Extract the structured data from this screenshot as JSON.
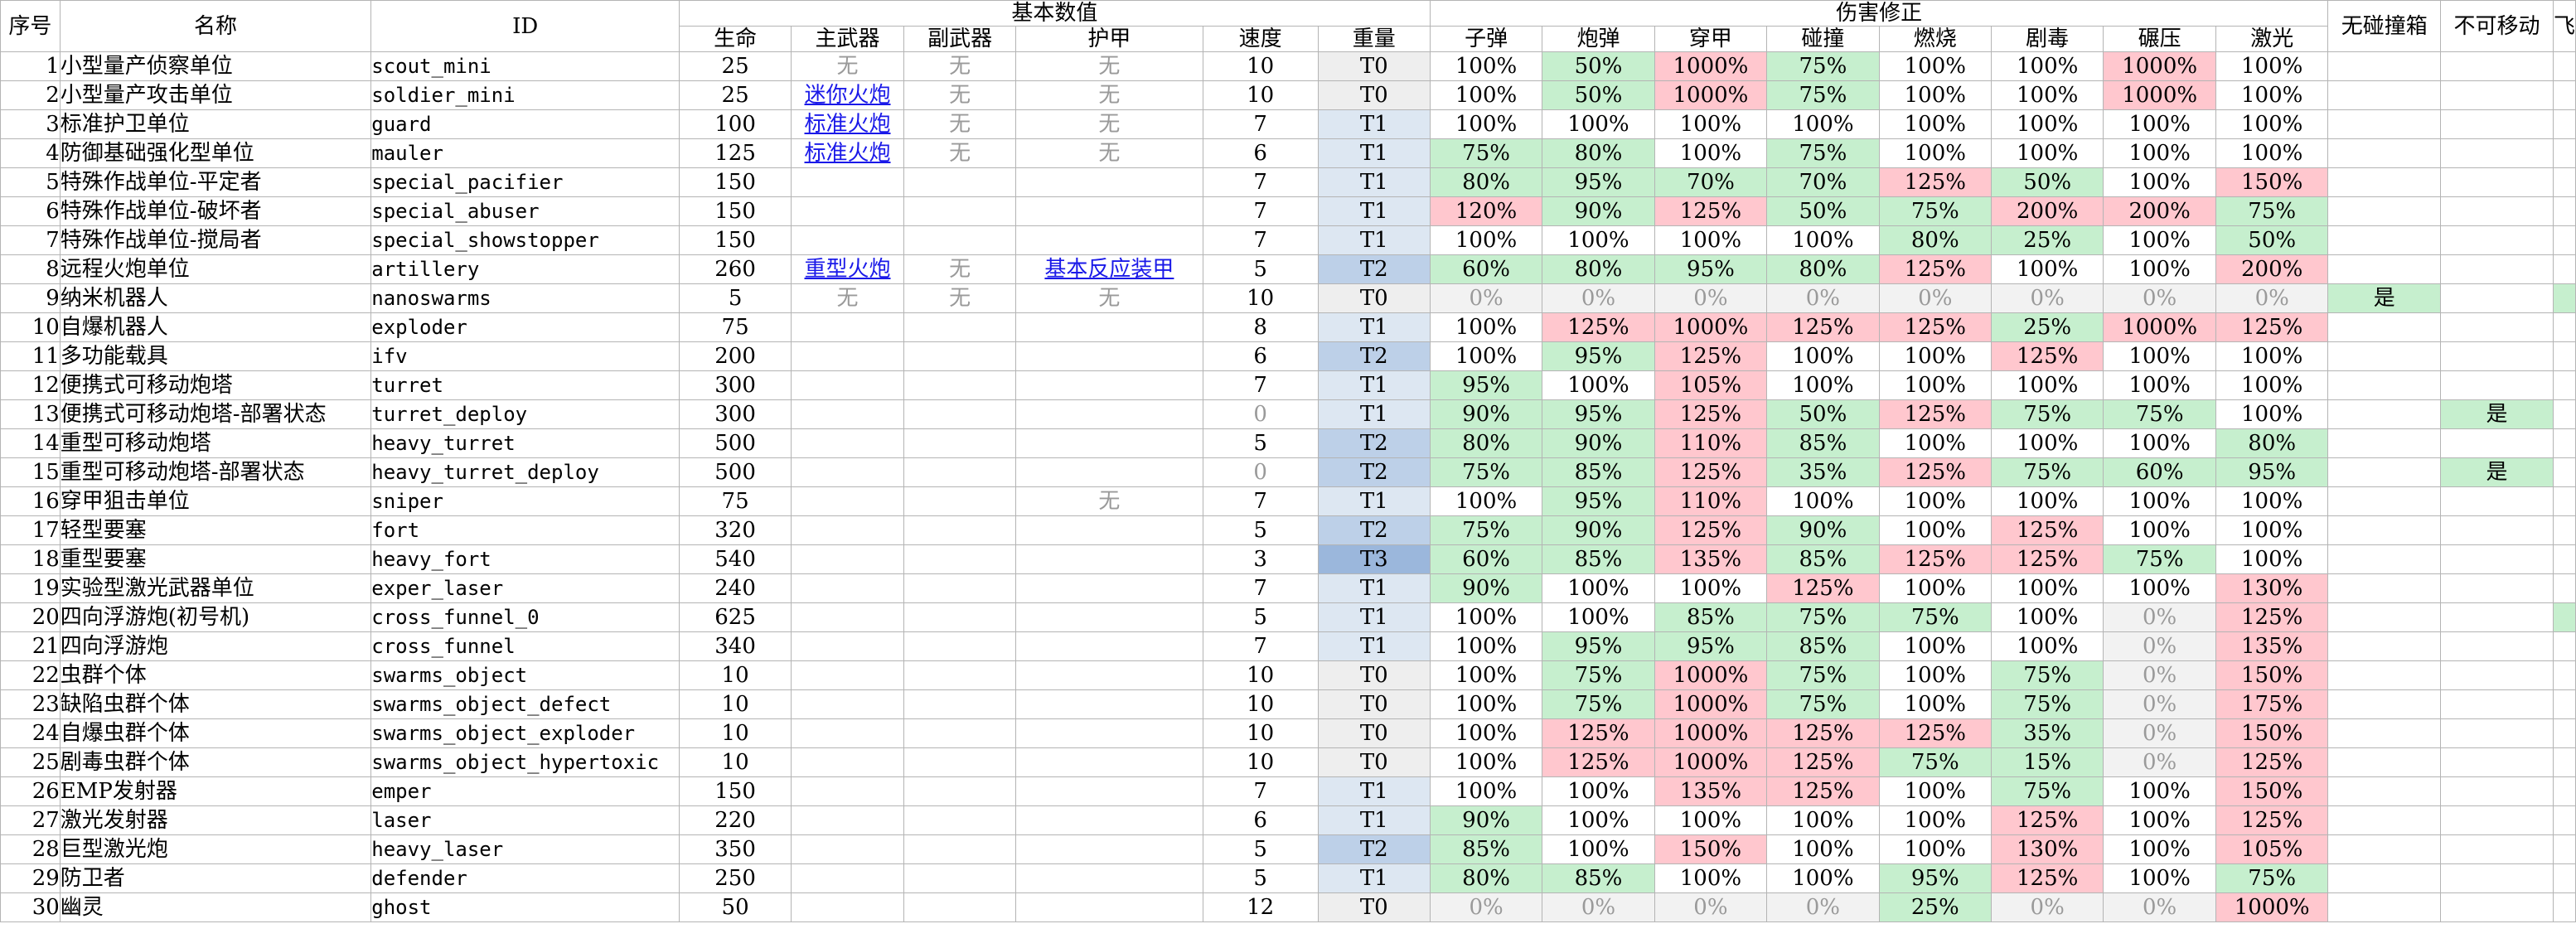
{
  "headers": {
    "top": {
      "no": "序号",
      "name": "名称",
      "id": "ID",
      "basic": "基本数值",
      "damage": "伤害修正",
      "no_collision": "无碰撞箱",
      "immobile": "不可移动",
      "extra": "飞"
    },
    "basic": [
      "生命",
      "主武器",
      "副武器",
      "护甲",
      "速度",
      "重量"
    ],
    "damage": [
      "子弹",
      "炮弹",
      "穿甲",
      "碰撞",
      "燃烧",
      "剧毒",
      "碾压",
      "激光"
    ]
  },
  "colors": {
    "grid": "#b4b4b4",
    "good": "#c6efce",
    "bad": "#ffc7ce",
    "zero": "#f2f2f2",
    "muted_text": "#9a9a9a",
    "link": "#1a19e8",
    "weight": {
      "T0": "#eeeeee",
      "T1": "#dde7f2",
      "T2": "#bdd0e8",
      "T3": "#9bb7dc"
    }
  },
  "rows": [
    {
      "no": "1",
      "name": "小型量产侦察单位",
      "id": "scout_mini",
      "hp": "25",
      "main": "无",
      "sub": "无",
      "armor": "无",
      "speed": "10",
      "weight": "T0",
      "mods": [
        "100%",
        "50%",
        "1000%",
        "75%",
        "100%",
        "100%",
        "1000%",
        "100%"
      ],
      "flags": [
        "",
        "",
        ""
      ]
    },
    {
      "no": "2",
      "name": "小型量产攻击单位",
      "id": "soldier_mini",
      "hp": "25",
      "main": "迷你火炮",
      "sub": "无",
      "armor": "无",
      "speed": "10",
      "weight": "T0",
      "mods": [
        "100%",
        "50%",
        "1000%",
        "75%",
        "100%",
        "100%",
        "1000%",
        "100%"
      ],
      "flags": [
        "",
        "",
        ""
      ]
    },
    {
      "no": "3",
      "name": "标准护卫单位",
      "id": "guard",
      "hp": "100",
      "main": "标准火炮",
      "sub": "无",
      "armor": "无",
      "speed": "7",
      "weight": "T1",
      "mods": [
        "100%",
        "100%",
        "100%",
        "100%",
        "100%",
        "100%",
        "100%",
        "100%"
      ],
      "flags": [
        "",
        "",
        ""
      ]
    },
    {
      "no": "4",
      "name": "防御基础强化型单位",
      "id": "mauler",
      "hp": "125",
      "main": "标准火炮",
      "sub": "无",
      "armor": "无",
      "speed": "6",
      "weight": "T1",
      "mods": [
        "75%",
        "80%",
        "100%",
        "75%",
        "100%",
        "100%",
        "100%",
        "100%"
      ],
      "flags": [
        "",
        "",
        ""
      ]
    },
    {
      "no": "5",
      "name": "特殊作战单位-平定者",
      "id": "special_pacifier",
      "hp": "150",
      "main": "",
      "sub": "",
      "armor": "",
      "speed": "7",
      "weight": "T1",
      "mods": [
        "80%",
        "95%",
        "70%",
        "70%",
        "125%",
        "50%",
        "100%",
        "150%"
      ],
      "flags": [
        "",
        "",
        ""
      ]
    },
    {
      "no": "6",
      "name": "特殊作战单位-破坏者",
      "id": "special_abuser",
      "hp": "150",
      "main": "",
      "sub": "",
      "armor": "",
      "speed": "7",
      "weight": "T1",
      "mods": [
        "120%",
        "90%",
        "125%",
        "50%",
        "75%",
        "200%",
        "200%",
        "75%"
      ],
      "flags": [
        "",
        "",
        ""
      ]
    },
    {
      "no": "7",
      "name": "特殊作战单位-搅局者",
      "id": "special_showstopper",
      "hp": "150",
      "main": "",
      "sub": "",
      "armor": "",
      "speed": "7",
      "weight": "T1",
      "mods": [
        "100%",
        "100%",
        "100%",
        "100%",
        "80%",
        "25%",
        "100%",
        "50%"
      ],
      "flags": [
        "",
        "",
        ""
      ]
    },
    {
      "no": "8",
      "name": "远程火炮单位",
      "id": "artillery",
      "hp": "260",
      "main": "重型火炮",
      "sub": "无",
      "armor": "基本反应装甲",
      "speed": "5",
      "weight": "T2",
      "mods": [
        "60%",
        "80%",
        "95%",
        "80%",
        "125%",
        "100%",
        "100%",
        "200%"
      ],
      "flags": [
        "",
        "",
        ""
      ]
    },
    {
      "no": "9",
      "name": "纳米机器人",
      "id": "nanoswarms",
      "hp": "5",
      "main": "无",
      "sub": "无",
      "armor": "无",
      "speed": "10",
      "weight": "T0",
      "mods": [
        "0%",
        "0%",
        "0%",
        "0%",
        "0%",
        "0%",
        "0%",
        "0%"
      ],
      "flags": [
        "是",
        "",
        ""
      ]
    },
    {
      "no": "10",
      "name": "自爆机器人",
      "id": "exploder",
      "hp": "75",
      "main": "",
      "sub": "",
      "armor": "",
      "speed": "8",
      "weight": "T1",
      "mods": [
        "100%",
        "125%",
        "1000%",
        "125%",
        "125%",
        "25%",
        "1000%",
        "125%"
      ],
      "flags": [
        "",
        "",
        ""
      ]
    },
    {
      "no": "11",
      "name": "多功能载具",
      "id": "ifv",
      "hp": "200",
      "main": "",
      "sub": "",
      "armor": "",
      "speed": "6",
      "weight": "T2",
      "mods": [
        "100%",
        "95%",
        "125%",
        "100%",
        "100%",
        "125%",
        "100%",
        "100%"
      ],
      "flags": [
        "",
        "",
        ""
      ]
    },
    {
      "no": "12",
      "name": "便携式可移动炮塔",
      "id": "turret",
      "hp": "300",
      "main": "",
      "sub": "",
      "armor": "",
      "speed": "7",
      "weight": "T1",
      "mods": [
        "95%",
        "100%",
        "105%",
        "100%",
        "100%",
        "100%",
        "100%",
        "100%"
      ],
      "flags": [
        "",
        "",
        ""
      ]
    },
    {
      "no": "13",
      "name": "便携式可移动炮塔-部署状态",
      "id": "turret_deploy",
      "hp": "300",
      "main": "",
      "sub": "",
      "armor": "",
      "speed": "0",
      "weight": "T1",
      "mods": [
        "90%",
        "95%",
        "125%",
        "50%",
        "125%",
        "75%",
        "75%",
        "100%"
      ],
      "flags": [
        "",
        "是",
        ""
      ]
    },
    {
      "no": "14",
      "name": "重型可移动炮塔",
      "id": "heavy_turret",
      "hp": "500",
      "main": "",
      "sub": "",
      "armor": "",
      "speed": "5",
      "weight": "T2",
      "mods": [
        "80%",
        "90%",
        "110%",
        "85%",
        "100%",
        "100%",
        "100%",
        "80%"
      ],
      "flags": [
        "",
        "",
        ""
      ]
    },
    {
      "no": "15",
      "name": "重型可移动炮塔-部署状态",
      "id": "heavy_turret_deploy",
      "hp": "500",
      "main": "",
      "sub": "",
      "armor": "",
      "speed": "0",
      "weight": "T2",
      "mods": [
        "75%",
        "85%",
        "125%",
        "35%",
        "125%",
        "75%",
        "60%",
        "95%"
      ],
      "flags": [
        "",
        "是",
        ""
      ]
    },
    {
      "no": "16",
      "name": "穿甲狙击单位",
      "id": "sniper",
      "hp": "75",
      "main": "",
      "sub": "",
      "armor": "无",
      "speed": "7",
      "weight": "T1",
      "mods": [
        "100%",
        "95%",
        "110%",
        "100%",
        "100%",
        "100%",
        "100%",
        "100%"
      ],
      "flags": [
        "",
        "",
        ""
      ]
    },
    {
      "no": "17",
      "name": "轻型要塞",
      "id": "fort",
      "hp": "320",
      "main": "",
      "sub": "",
      "armor": "",
      "speed": "5",
      "weight": "T2",
      "mods": [
        "75%",
        "90%",
        "125%",
        "90%",
        "100%",
        "125%",
        "100%",
        "100%"
      ],
      "flags": [
        "",
        "",
        ""
      ]
    },
    {
      "no": "18",
      "name": "重型要塞",
      "id": "heavy_fort",
      "hp": "540",
      "main": "",
      "sub": "",
      "armor": "",
      "speed": "3",
      "weight": "T3",
      "mods": [
        "60%",
        "85%",
        "135%",
        "85%",
        "125%",
        "125%",
        "75%",
        "100%"
      ],
      "flags": [
        "",
        "",
        ""
      ]
    },
    {
      "no": "19",
      "name": "实验型激光武器单位",
      "id": "exper_laser",
      "hp": "240",
      "main": "",
      "sub": "",
      "armor": "",
      "speed": "7",
      "weight": "T1",
      "mods": [
        "90%",
        "100%",
        "100%",
        "125%",
        "100%",
        "100%",
        "100%",
        "130%"
      ],
      "flags": [
        "",
        "",
        ""
      ]
    },
    {
      "no": "20",
      "name": "四向浮游炮(初号机)",
      "id": "cross_funnel_0",
      "hp": "625",
      "main": "",
      "sub": "",
      "armor": "",
      "speed": "5",
      "weight": "T1",
      "mods": [
        "100%",
        "100%",
        "85%",
        "75%",
        "75%",
        "100%",
        "0%",
        "125%"
      ],
      "flags": [
        "",
        "",
        ""
      ]
    },
    {
      "no": "21",
      "name": "四向浮游炮",
      "id": "cross_funnel",
      "hp": "340",
      "main": "",
      "sub": "",
      "armor": "",
      "speed": "7",
      "weight": "T1",
      "mods": [
        "100%",
        "95%",
        "95%",
        "85%",
        "100%",
        "100%",
        "0%",
        "135%"
      ],
      "flags": [
        "",
        "",
        ""
      ]
    },
    {
      "no": "22",
      "name": "虫群个体",
      "id": "swarms_object",
      "hp": "10",
      "main": "",
      "sub": "",
      "armor": "",
      "speed": "10",
      "weight": "T0",
      "mods": [
        "100%",
        "75%",
        "1000%",
        "75%",
        "100%",
        "75%",
        "0%",
        "150%"
      ],
      "flags": [
        "",
        "",
        ""
      ]
    },
    {
      "no": "23",
      "name": "缺陷虫群个体",
      "id": "swarms_object_defect",
      "hp": "10",
      "main": "",
      "sub": "",
      "armor": "",
      "speed": "10",
      "weight": "T0",
      "mods": [
        "100%",
        "75%",
        "1000%",
        "75%",
        "100%",
        "75%",
        "0%",
        "175%"
      ],
      "flags": [
        "",
        "",
        ""
      ]
    },
    {
      "no": "24",
      "name": "自爆虫群个体",
      "id": "swarms_object_exploder",
      "hp": "10",
      "main": "",
      "sub": "",
      "armor": "",
      "speed": "10",
      "weight": "T0",
      "mods": [
        "100%",
        "125%",
        "1000%",
        "125%",
        "125%",
        "35%",
        "0%",
        "150%"
      ],
      "flags": [
        "",
        "",
        ""
      ]
    },
    {
      "no": "25",
      "name": "剧毒虫群个体",
      "id": "swarms_object_hypertoxic",
      "hp": "10",
      "main": "",
      "sub": "",
      "armor": "",
      "speed": "10",
      "weight": "T0",
      "mods": [
        "100%",
        "125%",
        "1000%",
        "125%",
        "75%",
        "15%",
        "0%",
        "125%"
      ],
      "flags": [
        "",
        "",
        ""
      ]
    },
    {
      "no": "26",
      "name": "EMP发射器",
      "id": "emper",
      "hp": "150",
      "main": "",
      "sub": "",
      "armor": "",
      "speed": "7",
      "weight": "T1",
      "mods": [
        "100%",
        "100%",
        "135%",
        "125%",
        "100%",
        "75%",
        "100%",
        "150%"
      ],
      "flags": [
        "",
        "",
        ""
      ]
    },
    {
      "no": "27",
      "name": "激光发射器",
      "id": "laser",
      "hp": "220",
      "main": "",
      "sub": "",
      "armor": "",
      "speed": "6",
      "weight": "T1",
      "mods": [
        "90%",
        "100%",
        "100%",
        "100%",
        "100%",
        "125%",
        "100%",
        "125%"
      ],
      "flags": [
        "",
        "",
        ""
      ]
    },
    {
      "no": "28",
      "name": "巨型激光炮",
      "id": "heavy_laser",
      "hp": "350",
      "main": "",
      "sub": "",
      "armor": "",
      "speed": "5",
      "weight": "T2",
      "mods": [
        "85%",
        "100%",
        "150%",
        "100%",
        "100%",
        "130%",
        "100%",
        "105%"
      ],
      "flags": [
        "",
        "",
        ""
      ]
    },
    {
      "no": "29",
      "name": "防卫者",
      "id": "defender",
      "hp": "250",
      "main": "",
      "sub": "",
      "armor": "",
      "speed": "5",
      "weight": "T1",
      "mods": [
        "80%",
        "85%",
        "100%",
        "100%",
        "95%",
        "125%",
        "100%",
        "75%"
      ],
      "flags": [
        "",
        "",
        ""
      ]
    },
    {
      "no": "30",
      "name": "幽灵",
      "id": "ghost",
      "hp": "50",
      "main": "",
      "sub": "",
      "armor": "",
      "speed": "12",
      "weight": "T0",
      "mods": [
        "0%",
        "0%",
        "0%",
        "0%",
        "25%",
        "0%",
        "0%",
        "1000%"
      ],
      "flags": [
        "",
        "",
        ""
      ]
    }
  ]
}
